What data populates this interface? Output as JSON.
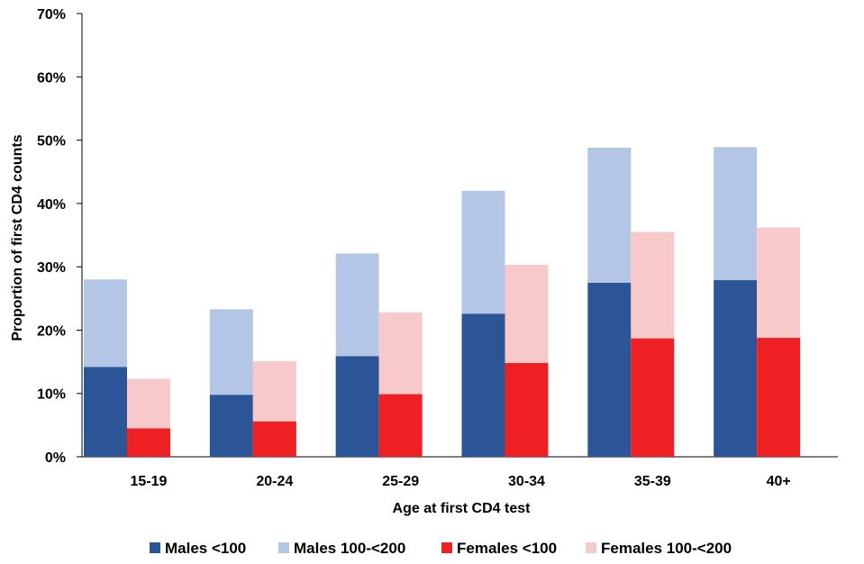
{
  "chart_data": {
    "type": "bar",
    "stacking": "stacked within sex, grouped by age",
    "title": "",
    "xlabel": "Age at first CD4 test",
    "ylabel": "Proportion of first CD4 counts",
    "ylim": [
      0,
      70
    ],
    "yticks": [
      "0%",
      "10%",
      "20%",
      "30%",
      "40%",
      "50%",
      "60%",
      "70%"
    ],
    "grid": false,
    "legend_position": "bottom",
    "categories": [
      "15-19",
      "20-24",
      "25-29",
      "30-34",
      "35-39",
      "40+"
    ],
    "groups": [
      {
        "sex": "Males",
        "series": [
          {
            "name": "Males <100",
            "color": "#2b5597",
            "values": [
              14.2,
              9.8,
              15.9,
              22.6,
              27.5,
              27.9
            ]
          },
          {
            "name": "Males 100-<200",
            "color": "#b4c6e6",
            "values": [
              13.8,
              13.5,
              16.2,
              19.4,
              21.3,
              21.0
            ]
          }
        ]
      },
      {
        "sex": "Females",
        "series": [
          {
            "name": "Females <100",
            "color": "#ee2024",
            "values": [
              4.5,
              5.6,
              9.9,
              14.8,
              18.7,
              18.8
            ]
          },
          {
            "name": "Females 100-<200",
            "color": "#f8c9cb",
            "values": [
              7.8,
              9.5,
              12.9,
              15.5,
              16.8,
              17.4
            ]
          }
        ]
      }
    ],
    "legend": [
      "Males <100",
      "Males 100-<200",
      "Females <100",
      "Females 100-<200"
    ]
  }
}
